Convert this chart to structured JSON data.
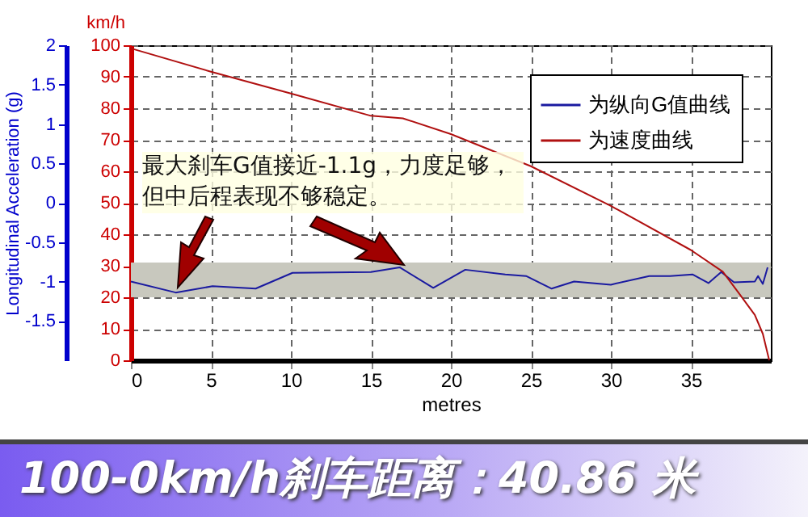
{
  "chart_data": {
    "type": "line",
    "title": "100-0km/h刹车距离：40.86 米",
    "xlabel": "metres",
    "ylabel": "Longitudinal Acceleration (g)",
    "y2label": "km/h",
    "annotations": [
      "最大刹车G值接近-1.1g，力度足够，但中后程表现不够稳定。"
    ],
    "series": [
      {
        "name": "为纵向G值曲线",
        "color": "#1a1aa0",
        "axis": "y",
        "x": [
          0,
          2.8,
          5.1,
          7.8,
          10.1,
          15,
          16.8,
          18.9,
          20.9,
          23.4,
          24.7,
          26.3,
          27.7,
          30,
          32.4,
          33.7,
          35.1,
          36.1,
          36.9,
          37.7,
          39,
          39.2,
          39.5,
          39.8
        ],
        "values": [
          -1.0,
          -1.14,
          -1.06,
          -1.09,
          -0.89,
          -0.88,
          -0.82,
          -1.08,
          -0.85,
          -0.91,
          -0.93,
          -1.09,
          -1.0,
          -1.04,
          -0.93,
          -0.93,
          -0.91,
          -1.02,
          -0.88,
          -1.01,
          -1.0,
          -0.93,
          -1.03,
          -0.82
        ]
      },
      {
        "name": "为速度曲线",
        "color": "#b01010",
        "axis": "y2",
        "x": [
          0,
          5,
          10,
          15,
          17,
          20,
          25,
          30,
          35,
          37,
          38,
          39,
          39.5,
          39.9
        ],
        "values": [
          99,
          91.6,
          84.7,
          77.6,
          76.8,
          71.8,
          61.6,
          49,
          35,
          28.1,
          21.3,
          14.4,
          8.4,
          0
        ]
      }
    ],
    "xlim": [
      0,
      40
    ],
    "xticks": [
      0,
      5,
      10,
      15,
      20,
      25,
      30,
      35
    ],
    "ylim": [
      -2,
      2
    ],
    "yticks": [
      -1.5,
      -1,
      -0.5,
      0,
      0.5,
      1,
      1.5,
      2
    ],
    "y2lim": [
      0,
      100
    ],
    "y2ticks": [
      0,
      10,
      20,
      30,
      40,
      50,
      60,
      70,
      80,
      90,
      100
    ],
    "bands": [
      {
        "axis": "y",
        "from": -1.2,
        "to": -0.76,
        "color": "#c8c8be"
      }
    ],
    "grid": true,
    "legend": "top right",
    "marker": "none",
    "line_style": "solid"
  }
}
